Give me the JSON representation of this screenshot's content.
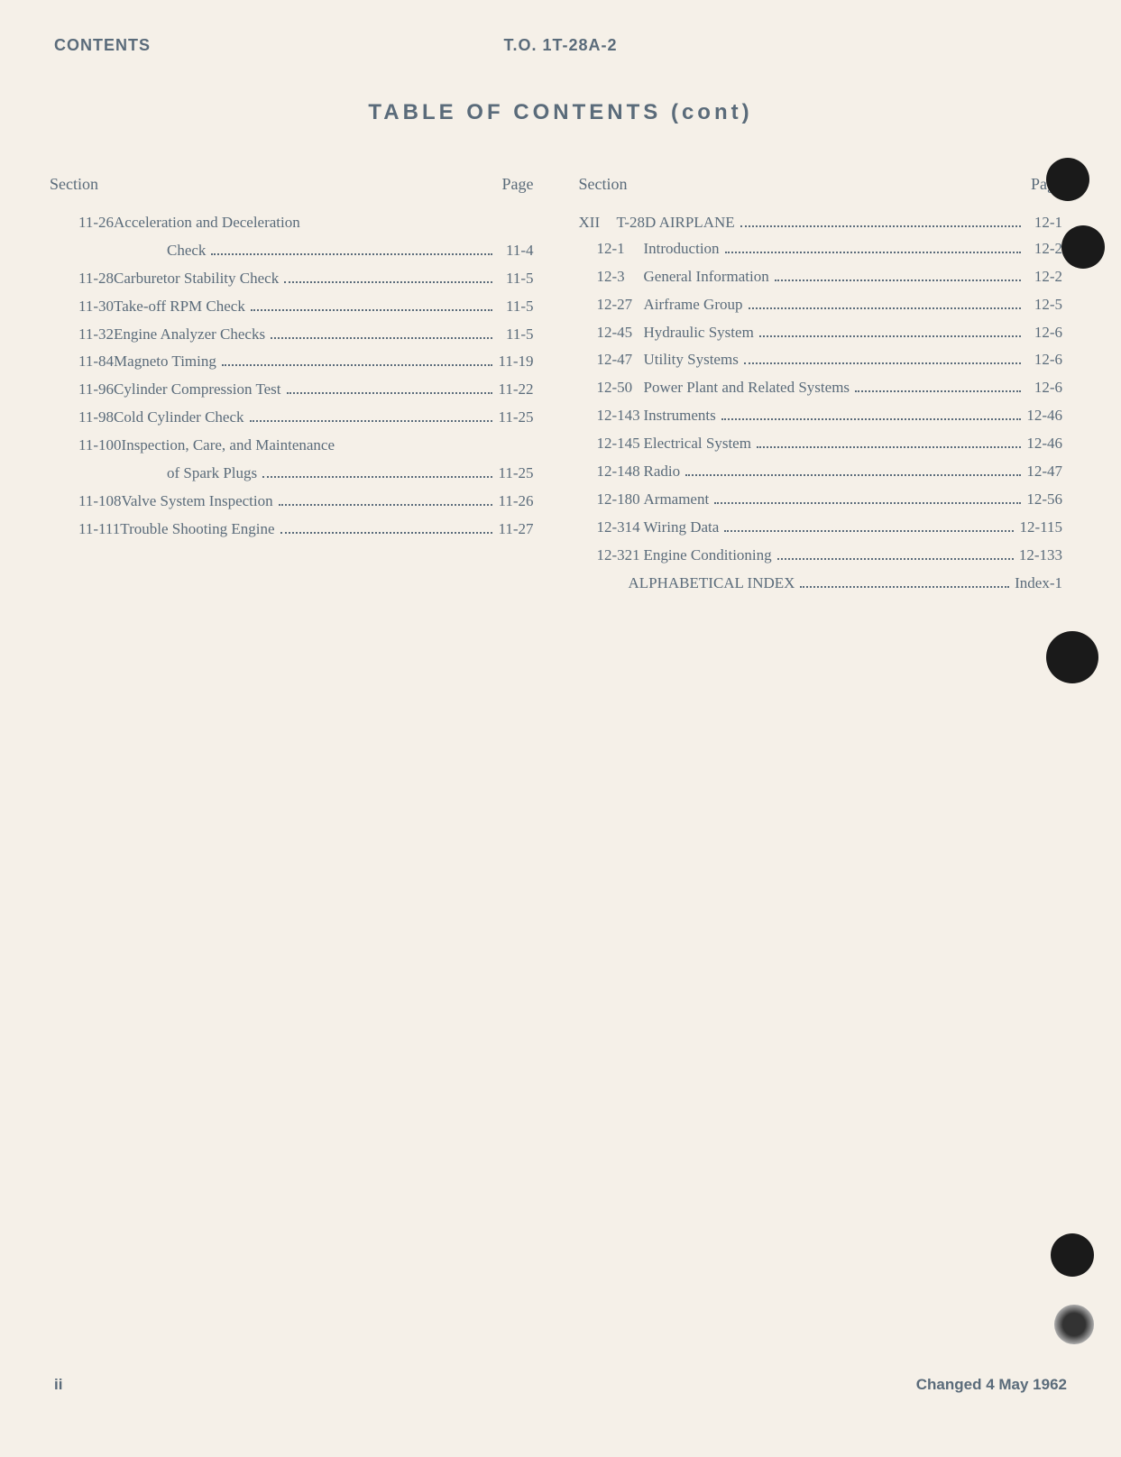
{
  "header": {
    "left": "CONTENTS",
    "center": "T.O. 1T-28A-2"
  },
  "title": "TABLE OF CONTENTS (cont)",
  "column_headers": {
    "section": "Section",
    "page": "Page"
  },
  "left_column": [
    {
      "num": "11-26",
      "title": "Acceleration and Deceleration",
      "page": "",
      "wrap": true
    },
    {
      "num": "",
      "title": "Check",
      "page": "11-4",
      "continuation": true
    },
    {
      "num": "11-28",
      "title": "Carburetor Stability Check",
      "page": "11-5"
    },
    {
      "num": "11-30",
      "title": "Take-off RPM Check",
      "page": "11-5"
    },
    {
      "num": "11-32",
      "title": "Engine Analyzer Checks",
      "page": "11-5"
    },
    {
      "num": "11-84",
      "title": "Magneto Timing",
      "page": "11-19"
    },
    {
      "num": "11-96",
      "title": "Cylinder Compression Test",
      "page": "11-22"
    },
    {
      "num": "11-98",
      "title": "Cold Cylinder Check",
      "page": "11-25"
    },
    {
      "num": "11-100",
      "title": "Inspection, Care, and Maintenance",
      "page": "",
      "wrap": true
    },
    {
      "num": "",
      "title": "of Spark Plugs",
      "page": "11-25",
      "continuation": true
    },
    {
      "num": "11-108",
      "title": "Valve System Inspection",
      "page": "11-26"
    },
    {
      "num": "11-111",
      "title": "Trouble Shooting Engine",
      "page": "11-27"
    }
  ],
  "right_column": {
    "section_num": "XII",
    "section_title": "T-28D AIRPLANE",
    "section_page": "12-1",
    "entries": [
      {
        "num": "12-1",
        "title": "Introduction",
        "page": "12-2"
      },
      {
        "num": "12-3",
        "title": "General Information",
        "page": "12-2"
      },
      {
        "num": "12-27",
        "title": "Airframe Group",
        "page": "12-5"
      },
      {
        "num": "12-45",
        "title": "Hydraulic System",
        "page": "12-6"
      },
      {
        "num": "12-47",
        "title": "Utility Systems",
        "page": "12-6"
      },
      {
        "num": "12-50",
        "title": "Power Plant and Related Systems",
        "page": "12-6"
      },
      {
        "num": "12-143",
        "title": "Instruments",
        "page": "12-46"
      },
      {
        "num": "12-145",
        "title": "Electrical System",
        "page": "12-46"
      },
      {
        "num": "12-148",
        "title": "Radio",
        "page": "12-47"
      },
      {
        "num": "12-180",
        "title": "Armament",
        "page": "12-56"
      },
      {
        "num": "12-314",
        "title": "Wiring Data",
        "page": "12-115"
      },
      {
        "num": "12-321",
        "title": "Engine Conditioning",
        "page": "12-133"
      }
    ],
    "index_title": "ALPHABETICAL INDEX",
    "index_page": "Index-1"
  },
  "footer": {
    "left": "ii",
    "right": "Changed 4 May 1962"
  }
}
